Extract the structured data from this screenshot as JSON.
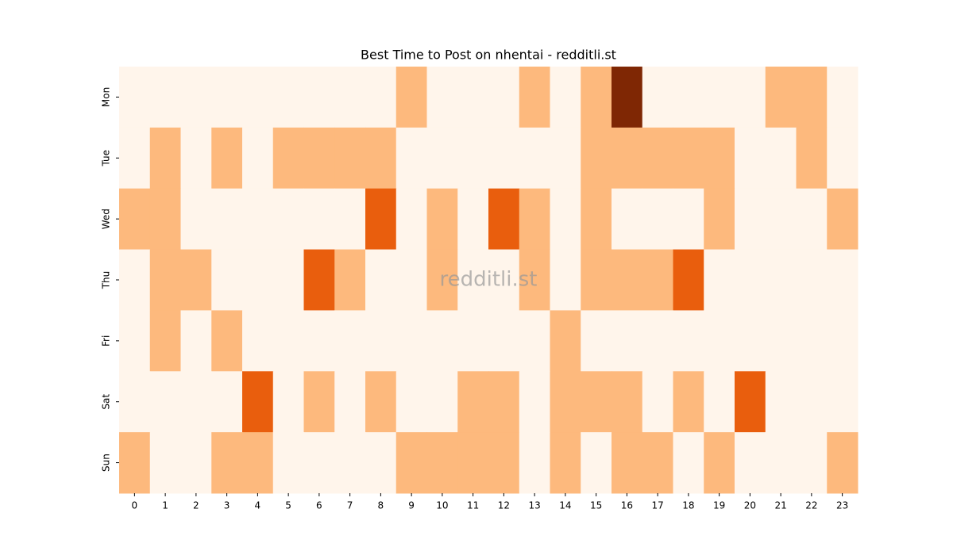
{
  "chart_data": {
    "type": "heatmap",
    "title": "Best Time to Post on nhentai - redditli.st",
    "watermark": "redditli.st",
    "x_categories": [
      "0",
      "1",
      "2",
      "3",
      "4",
      "5",
      "6",
      "7",
      "8",
      "9",
      "10",
      "11",
      "12",
      "13",
      "14",
      "15",
      "16",
      "17",
      "18",
      "19",
      "20",
      "21",
      "22",
      "23"
    ],
    "y_categories": [
      "Mon",
      "Tue",
      "Wed",
      "Thu",
      "Fri",
      "Sat",
      "Sun"
    ],
    "values": [
      [
        0,
        0,
        0,
        0,
        0,
        0,
        0,
        0,
        0,
        1,
        0,
        0,
        0,
        1,
        0,
        1,
        3,
        0,
        0,
        0,
        0,
        1,
        1,
        0
      ],
      [
        0,
        1,
        0,
        1,
        0,
        1,
        1,
        1,
        1,
        0,
        0,
        0,
        0,
        0,
        0,
        1,
        1,
        1,
        1,
        1,
        0,
        0,
        1,
        0
      ],
      [
        1,
        1,
        0,
        0,
        0,
        0,
        0,
        0,
        2,
        0,
        1,
        0,
        2,
        1,
        0,
        1,
        0,
        0,
        0,
        1,
        0,
        0,
        0,
        1
      ],
      [
        0,
        1,
        1,
        0,
        0,
        0,
        2,
        1,
        0,
        0,
        1,
        0,
        0,
        1,
        0,
        1,
        1,
        1,
        2,
        0,
        0,
        0,
        0,
        0
      ],
      [
        0,
        1,
        0,
        1,
        0,
        0,
        0,
        0,
        0,
        0,
        0,
        0,
        0,
        0,
        1,
        0,
        0,
        0,
        0,
        0,
        0,
        0,
        0,
        0
      ],
      [
        0,
        0,
        0,
        0,
        2,
        0,
        1,
        0,
        1,
        0,
        0,
        1,
        1,
        0,
        1,
        1,
        1,
        0,
        1,
        0,
        2,
        0,
        0,
        0
      ],
      [
        1,
        0,
        0,
        1,
        1,
        0,
        0,
        0,
        0,
        1,
        1,
        1,
        1,
        0,
        1,
        0,
        1,
        1,
        0,
        1,
        0,
        0,
        0,
        1
      ]
    ],
    "clim": [
      0,
      3
    ],
    "colormap": [
      "#fff5eb",
      "#fdb97d",
      "#e95e0d",
      "#7f2704"
    ]
  }
}
